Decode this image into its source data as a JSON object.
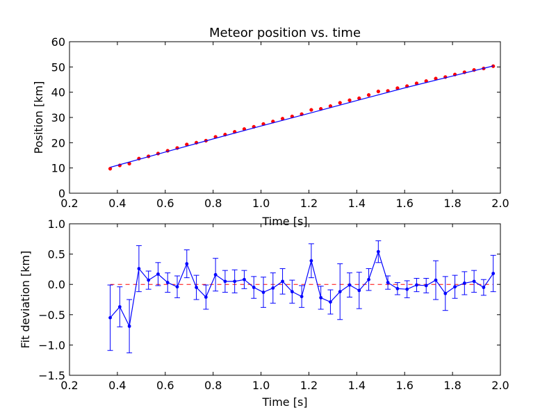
{
  "colors": {
    "fit_line": "#0000ff",
    "data_points": "#ff0000",
    "errorbar": "#0000ff",
    "zero_line": "#ff0000",
    "axes": "#000000",
    "background": "#ffffff"
  },
  "chart_data": [
    {
      "type": "scatter",
      "title": "Meteor position vs. time",
      "xlabel": "Time [s]",
      "ylabel": "Position [km]",
      "xlim": [
        0.2,
        2.0
      ],
      "ylim": [
        0,
        60
      ],
      "xticks": [
        "0.2",
        "0.4",
        "0.6",
        "0.8",
        "1.0",
        "1.2",
        "1.4",
        "1.6",
        "1.8",
        "2.0"
      ],
      "yticks": [
        "0",
        "10",
        "20",
        "30",
        "40",
        "50",
        "60"
      ],
      "grid": false,
      "series": [
        {
          "kind": "markers",
          "color": "red",
          "x": [
            0.37,
            0.41,
            0.45,
            0.49,
            0.53,
            0.57,
            0.61,
            0.65,
            0.69,
            0.73,
            0.77,
            0.81,
            0.85,
            0.89,
            0.93,
            0.97,
            1.01,
            1.05,
            1.09,
            1.13,
            1.17,
            1.21,
            1.25,
            1.29,
            1.33,
            1.37,
            1.41,
            1.45,
            1.49,
            1.53,
            1.57,
            1.61,
            1.65,
            1.69,
            1.73,
            1.77,
            1.81,
            1.85,
            1.89,
            1.93,
            1.97
          ],
          "y": [
            9.7,
            11.0,
            11.7,
            13.7,
            14.6,
            15.7,
            16.8,
            17.9,
            19.3,
            20.0,
            20.8,
            22.3,
            23.2,
            24.3,
            25.4,
            26.3,
            27.4,
            28.4,
            29.5,
            30.4,
            31.3,
            33.0,
            33.4,
            34.5,
            35.8,
            36.8,
            37.6,
            38.9,
            40.3,
            40.5,
            41.6,
            42.4,
            43.5,
            44.4,
            45.4,
            46.0,
            47.0,
            47.9,
            48.8,
            49.4,
            50.3
          ]
        },
        {
          "kind": "line",
          "color": "blue",
          "x": [
            0.37,
            0.6,
            0.8,
            1.0,
            1.2,
            1.4,
            1.6,
            1.8,
            1.97
          ],
          "y": [
            10.25,
            16.3,
            21.5,
            26.6,
            31.6,
            36.7,
            41.7,
            46.4,
            50.4
          ]
        }
      ]
    },
    {
      "type": "line",
      "title": "",
      "xlabel": "Time [s]",
      "ylabel": "Fit deviation [km]",
      "xlim": [
        0.2,
        2.0
      ],
      "ylim": [
        -1.5,
        1.0
      ],
      "xticks": [
        "0.2",
        "0.4",
        "0.6",
        "0.8",
        "1.0",
        "1.2",
        "1.4",
        "1.6",
        "1.8",
        "2.0"
      ],
      "yticks": [
        "−1.5",
        "−1.0",
        "−0.5",
        "0.0",
        "0.5",
        "1.0"
      ],
      "grid": false,
      "zero_line": {
        "y": 0,
        "style": "dashed",
        "color": "red",
        "x_range": [
          0.37,
          1.97
        ]
      },
      "series": [
        {
          "kind": "errorbar",
          "color": "blue",
          "x": [
            0.37,
            0.41,
            0.45,
            0.49,
            0.53,
            0.57,
            0.61,
            0.65,
            0.69,
            0.73,
            0.77,
            0.81,
            0.85,
            0.89,
            0.93,
            0.97,
            1.01,
            1.05,
            1.09,
            1.13,
            1.17,
            1.21,
            1.25,
            1.29,
            1.33,
            1.37,
            1.41,
            1.45,
            1.49,
            1.53,
            1.57,
            1.61,
            1.65,
            1.69,
            1.73,
            1.77,
            1.81,
            1.85,
            1.89,
            1.93,
            1.97
          ],
          "y": [
            -0.55,
            -0.37,
            -0.69,
            0.26,
            0.07,
            0.17,
            0.03,
            -0.04,
            0.34,
            -0.05,
            -0.21,
            0.16,
            0.05,
            0.05,
            0.08,
            -0.05,
            -0.13,
            -0.06,
            0.05,
            -0.12,
            -0.2,
            0.39,
            -0.22,
            -0.29,
            -0.12,
            -0.01,
            -0.1,
            0.08,
            0.54,
            0.03,
            -0.07,
            -0.08,
            -0.01,
            -0.02,
            0.07,
            -0.15,
            -0.04,
            0.02,
            0.05,
            -0.05,
            0.18
          ],
          "yerr": [
            0.54,
            0.33,
            0.44,
            0.38,
            0.15,
            0.19,
            0.16,
            0.18,
            0.23,
            0.2,
            0.2,
            0.27,
            0.18,
            0.19,
            0.15,
            0.18,
            0.25,
            0.25,
            0.21,
            0.19,
            0.18,
            0.28,
            0.19,
            0.2,
            0.46,
            0.2,
            0.3,
            0.18,
            0.18,
            0.11,
            0.1,
            0.14,
            0.11,
            0.12,
            0.32,
            0.28,
            0.19,
            0.19,
            0.18,
            0.13,
            0.3
          ]
        }
      ]
    }
  ]
}
